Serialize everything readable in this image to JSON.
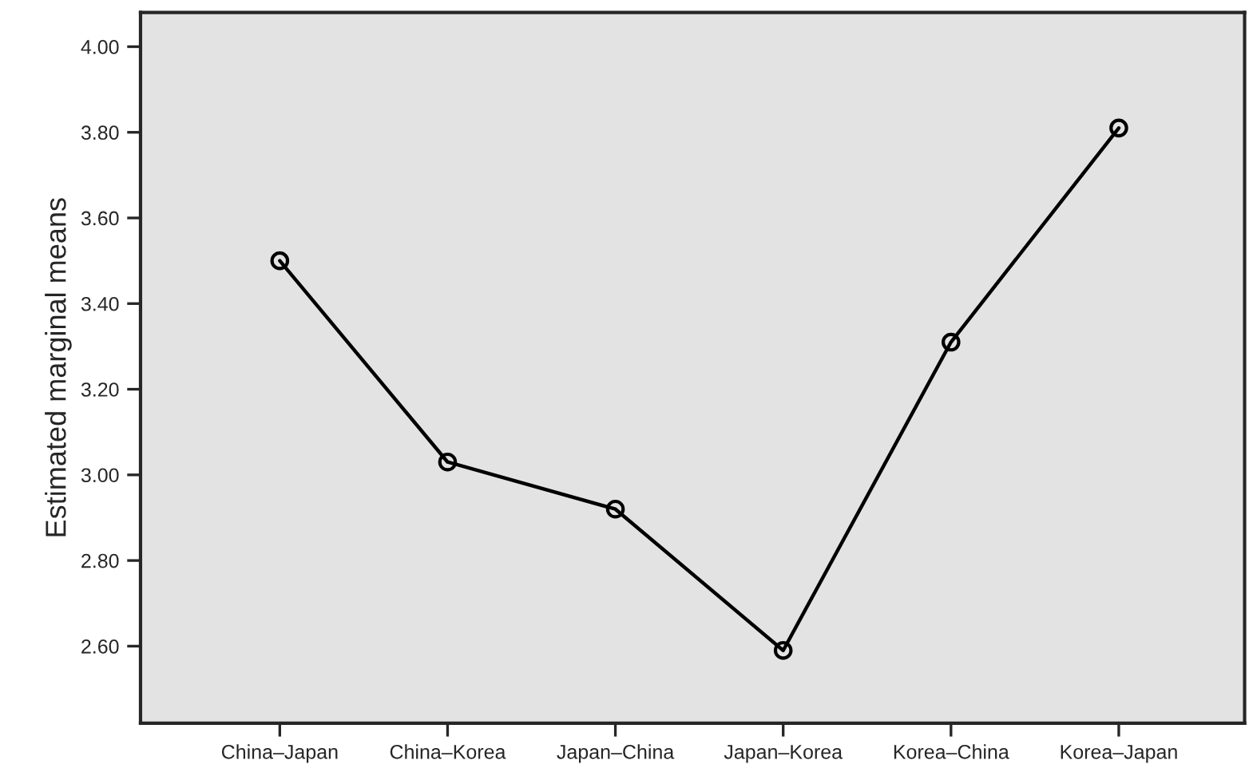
{
  "chart_data": {
    "type": "line",
    "ylabel": "Estimated marginal means",
    "categories": [
      "China–Japan",
      "China–Korea",
      "Japan–China",
      "Japan–Korea",
      "Korea–China",
      "Korea–Japan"
    ],
    "series": [
      {
        "color": "#000000",
        "values": [
          3.5,
          3.03,
          2.92,
          2.59,
          3.31,
          3.81
        ]
      }
    ],
    "ylim": [
      2.42,
      4.08
    ],
    "yticks": [
      {
        "value": 2.6,
        "label": "2.60"
      },
      {
        "value": 2.8,
        "label": "2.80"
      },
      {
        "value": 3.0,
        "label": "3.00"
      },
      {
        "value": 3.2,
        "label": "3.20"
      },
      {
        "value": 3.4,
        "label": "3.40"
      },
      {
        "value": 3.6,
        "label": "3.60"
      },
      {
        "value": 3.8,
        "label": "3.80"
      },
      {
        "value": 4.0,
        "label": "4.00"
      }
    ],
    "marker": "circle",
    "line_style": "solid",
    "grid": false,
    "legend": false
  }
}
